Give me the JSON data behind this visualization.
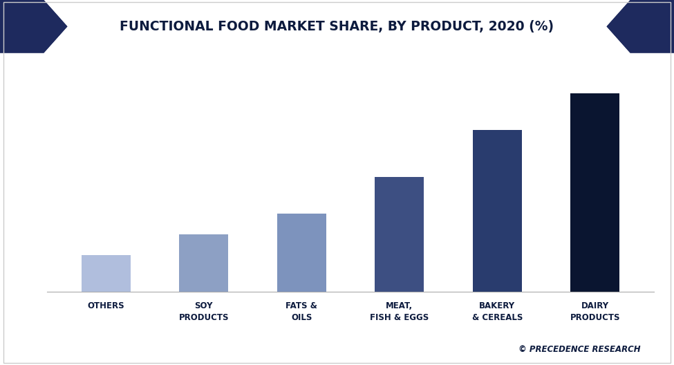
{
  "title": "FUNCTIONAL FOOD MARKET SHARE, BY PRODUCT, 2020 (%)",
  "categories": [
    "OTHERS",
    "SOY\nPRODUCTS",
    "FATS &\nOILS",
    "MEAT,\nFISH & EGGS",
    "BAKERY\n& CEREALS",
    "DAIRY\nPRODUCTS"
  ],
  "values": [
    7,
    11,
    15,
    22,
    31,
    38
  ],
  "bar_colors": [
    "#b0bedd",
    "#8da0c4",
    "#7d93bd",
    "#3d4f82",
    "#293c6e",
    "#0a1530"
  ],
  "background_color": "#ffffff",
  "plot_bg_color": "#ffffff",
  "title_color": "#0d1b3e",
  "title_fontsize": 13.5,
  "source_text": "© PRECEDENCE RESEARCH",
  "source_color": "#0d1b3e",
  "ylim": [
    0,
    44
  ],
  "bar_width": 0.5,
  "header_bg": "#1e2a5e",
  "border_color": "#cccccc"
}
